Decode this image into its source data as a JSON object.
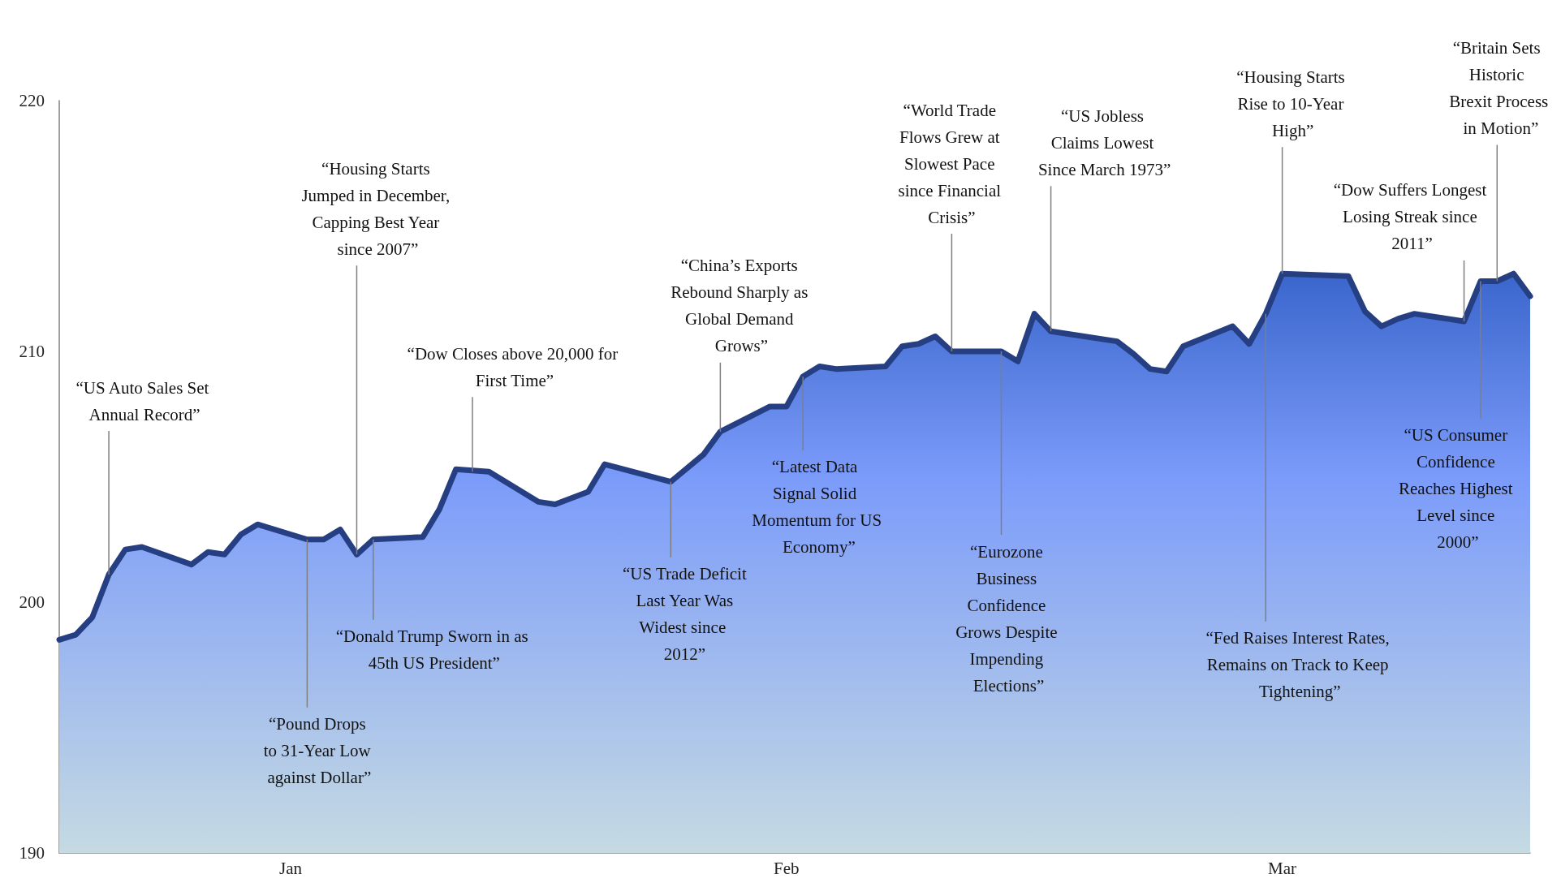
{
  "chart_data": {
    "type": "area",
    "color": "#253f82",
    "x": [
      "--01-01",
      "--01-02",
      "--01-03",
      "--01-04",
      "--01-05",
      "--01-06",
      "--01-09",
      "--01-10",
      "--01-11",
      "--01-12",
      "--01-13",
      "--01-16",
      "--01-17",
      "--01-18",
      "--01-19",
      "--01-20",
      "--01-23",
      "--01-24",
      "--01-25",
      "--01-27",
      "--01-30",
      "--01-31",
      "--02-02",
      "--02-03",
      "--02-07",
      "--02-09",
      "--02-10",
      "--02-13",
      "--02-14",
      "--02-15",
      "--02-16",
      "--02-17",
      "--02-20",
      "--02-21",
      "--02-22",
      "--02-23",
      "--02-24",
      "--02-27",
      "--02-28",
      "--03-01",
      "--03-02",
      "--03-06",
      "--03-07",
      "--03-08",
      "--03-09",
      "--03-10",
      "--03-13",
      "--03-14",
      "--03-15",
      "--03-16",
      "--03-20",
      "--03-21",
      "--03-22",
      "--03-23",
      "--03-24",
      "--03-27",
      "--03-28",
      "--03-29",
      "--03-30",
      "--03-31"
    ],
    "values": [
      198.5,
      198.7,
      199.4,
      201.1,
      202.1,
      202.2,
      201.5,
      202.0,
      201.9,
      202.7,
      203.1,
      202.5,
      202.5,
      202.9,
      201.9,
      202.5,
      202.6,
      203.7,
      205.3,
      205.2,
      204.0,
      203.9,
      204.4,
      205.5,
      204.8,
      205.9,
      206.8,
      207.8,
      207.8,
      209.0,
      209.4,
      209.3,
      209.4,
      210.2,
      210.3,
      210.6,
      210.0,
      210.0,
      209.6,
      211.5,
      210.8,
      210.4,
      209.9,
      209.3,
      209.2,
      210.2,
      211.0,
      210.3,
      211.5,
      213.1,
      213.0,
      211.6,
      211.0,
      211.3,
      211.5,
      211.2,
      212.8,
      212.8,
      213.1,
      212.2
    ],
    "xlim": [
      "--01-01",
      "--03-31"
    ],
    "xticks": [
      {
        "value": "--01-15",
        "label": "Jan"
      },
      {
        "value": "--02-14",
        "label": "Feb"
      },
      {
        "value": "--03-16",
        "label": "Mar"
      }
    ],
    "ylim": [
      190,
      220
    ],
    "yticks": [
      190,
      200,
      210,
      220
    ],
    "annotations": [
      {
        "text": "“US Auto Sales Set Annual Record”",
        "x": "--01-04",
        "y": 201.1
      },
      {
        "text": "“Housing Starts Jumped in December, Capping Best Year since 2007”",
        "x": "--01-19",
        "y": 201.9
      },
      {
        "text": "“Pound Drops to 31-Year Low against Dollar”",
        "x": "--01-16",
        "y": 202.5
      },
      {
        "text": "“Donald Trump Sworn in as 45th US President”",
        "x": "--01-20",
        "y": 202.5
      },
      {
        "text": "“Dow Closes above 20,000 for First Time”",
        "x": "--01-26",
        "y": 205.2
      },
      {
        "text": "“China’s Exports Rebound Sharply as Global Demand Grows”",
        "x": "--02-10",
        "y": 206.8
      },
      {
        "text": "“US Trade Deficit Last Year Was Widest since 2012”",
        "x": "--02-07",
        "y": 204.8
      },
      {
        "text": "“Latest Data Signal Solid Momentum for US Economy”",
        "x": "--02-15",
        "y": 209.0
      },
      {
        "text": "“World Trade Flows Grew at Slowest Pace since Financial Crisis”",
        "x": "--02-24",
        "y": 210.0
      },
      {
        "text": "“Eurozone Business Confidence Grows Despite Impending Elections”",
        "x": "--02-27",
        "y": 210.0
      },
      {
        "text": "“US Jobless Claims Lowest Since March 1973”",
        "x": "--03-02",
        "y": 210.8
      },
      {
        "text": "“Housing Starts Rise to 10-Year High”",
        "x": "--03-16",
        "y": 213.1
      },
      {
        "text": "“Fed Raises Interest Rates, Remains on Track to Keep Tightening”",
        "x": "--03-15",
        "y": 211.5
      },
      {
        "text": "“Dow Suffers Longest Losing Streak since 2011”",
        "x": "--03-27",
        "y": 211.2
      },
      {
        "text": "“Britain Sets Historic Brexit Process in Motion”",
        "x": "--03-29",
        "y": 212.8
      },
      {
        "text": "“US Consumer Confidence Reaches Highest Level since 2000”",
        "x": "--03-28",
        "y": 212.8
      }
    ]
  }
}
